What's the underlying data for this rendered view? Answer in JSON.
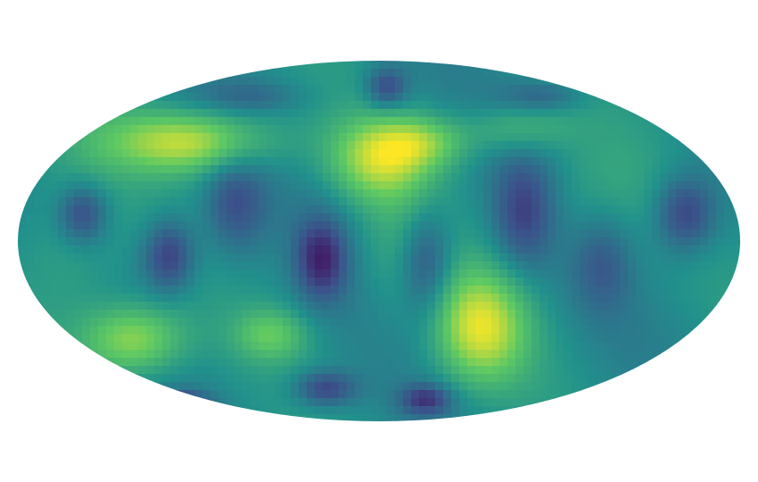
{
  "map": {
    "projection": "mollweide",
    "colormap": "viridis",
    "colormap_stops": [
      "#440154",
      "#3b528b",
      "#21918c",
      "#5ec962",
      "#fde725"
    ],
    "background_color": "#ffffff",
    "pixelated": true,
    "grid": false,
    "colorbar": false
  }
}
